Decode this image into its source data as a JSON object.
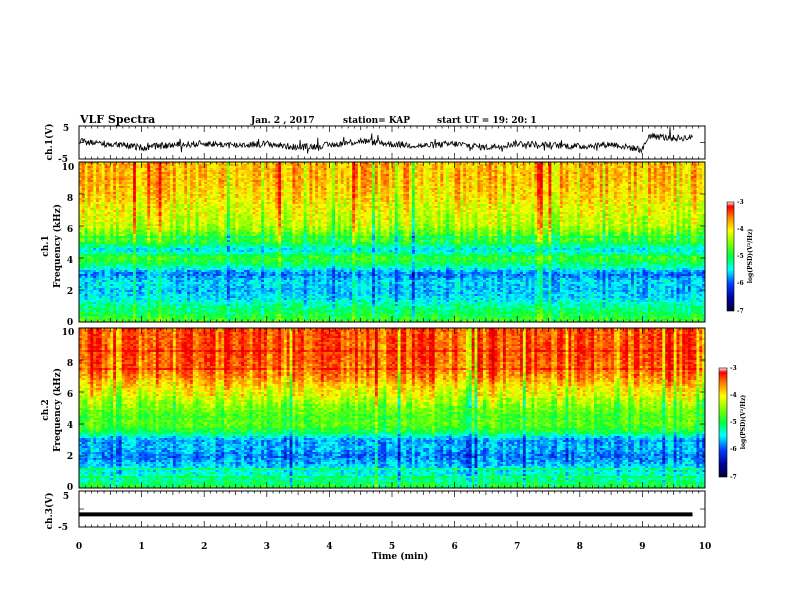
{
  "header": {
    "title": "VLF Spectra",
    "date": "Jan. 2 , 2017",
    "station": "station= KAP",
    "start_time": "start UT =  19: 20: 1"
  },
  "colors": {
    "spectrogram_colormap": [
      "#000033",
      "#0000a0",
      "#0040ff",
      "#00ffff",
      "#00ff40",
      "#80ff00",
      "#ffff00",
      "#ff8000",
      "#ff0000",
      "#cc0000"
    ],
    "trace": "#000000"
  },
  "chart_data": [
    {
      "type": "line",
      "name": "ch1-voltage",
      "ylabel": "ch.1(V)",
      "ylim": [
        -5,
        5
      ],
      "yticks": [
        "5",
        "-5"
      ],
      "xlim": [
        0,
        10
      ],
      "trend": {
        "x": [
          0,
          0.5,
          1.0,
          1.5,
          2.0,
          2.5,
          3.0,
          3.5,
          4.0,
          4.5,
          5.0,
          5.5,
          6.0,
          6.5,
          7.0,
          7.5,
          8.0,
          8.5,
          8.8,
          9.0,
          9.1,
          9.5,
          9.8
        ],
        "y": [
          0.3,
          -0.5,
          -1.5,
          -0.8,
          -0.3,
          -0.8,
          -0.4,
          -1.5,
          -0.8,
          0.5,
          -0.5,
          -1.0,
          -0.4,
          -1.5,
          -0.3,
          -0.8,
          -1.2,
          -0.5,
          -1.5,
          -2.2,
          2.0,
          1.3,
          1.5
        ]
      }
    },
    {
      "type": "heatmap",
      "name": "ch1-spectrogram",
      "ylabel_top": "ch.1",
      "ylabel": "Frequency (kHz)",
      "ylim": [
        0,
        10
      ],
      "yticks": [
        "0",
        "2",
        "4",
        "6",
        "8",
        "10"
      ],
      "xlim": [
        0,
        10
      ],
      "colorbar": {
        "label": "log(PSD)(V²/Hz)",
        "range": [
          -7,
          -3
        ],
        "ticks": [
          "-3",
          "-4",
          "-5",
          "-6",
          "-7"
        ]
      },
      "profile": {
        "freq_khz": [
          0,
          0.5,
          1.0,
          1.5,
          2.0,
          2.5,
          3.0,
          3.5,
          4.0,
          4.5,
          5.0,
          5.5,
          6.0,
          7.0,
          8.0,
          9.0,
          10.0
        ],
        "log_psd": [
          -5.0,
          -5.2,
          -5.4,
          -5.7,
          -5.8,
          -5.7,
          -6.0,
          -5.4,
          -5.0,
          -5.7,
          -5.1,
          -4.9,
          -4.6,
          -4.4,
          -4.2,
          -4.1,
          -4.1
        ]
      }
    },
    {
      "type": "heatmap",
      "name": "ch2-spectrogram",
      "ylabel_top": "ch.2",
      "ylabel": "Frequency (kHz)",
      "ylim": [
        0,
        10
      ],
      "yticks": [
        "0",
        "2",
        "4",
        "6",
        "8",
        "10"
      ],
      "xlim": [
        0,
        10
      ],
      "colorbar": {
        "label": "log(PSD)(V²/Hz)",
        "range": [
          -7,
          -3
        ],
        "ticks": [
          "-3",
          "-4",
          "-5",
          "-6",
          "-7"
        ]
      },
      "profile": {
        "freq_khz": [
          0,
          0.5,
          1.0,
          1.5,
          2.0,
          2.5,
          3.0,
          3.5,
          4.0,
          4.5,
          5.0,
          6.0,
          7.0,
          8.0,
          9.0,
          10.0
        ],
        "log_psd": [
          -5.1,
          -5.4,
          -5.6,
          -5.8,
          -6.0,
          -5.8,
          -5.9,
          -5.2,
          -4.9,
          -5.0,
          -4.8,
          -4.4,
          -3.9,
          -3.7,
          -3.7,
          -3.7
        ]
      }
    },
    {
      "type": "line",
      "name": "ch3-voltage",
      "ylabel": "ch.3(V)",
      "ylim": [
        -5,
        5
      ],
      "yticks": [
        "5",
        "-5"
      ],
      "xlim": [
        0,
        10
      ],
      "xlabel": "Time (min)",
      "xticks": [
        "0",
        "1",
        "2",
        "3",
        "4",
        "5",
        "6",
        "7",
        "8",
        "9",
        "10"
      ],
      "trend": {
        "x": [
          0,
          9.8
        ],
        "y": [
          -1.5,
          -1.5
        ]
      }
    }
  ]
}
